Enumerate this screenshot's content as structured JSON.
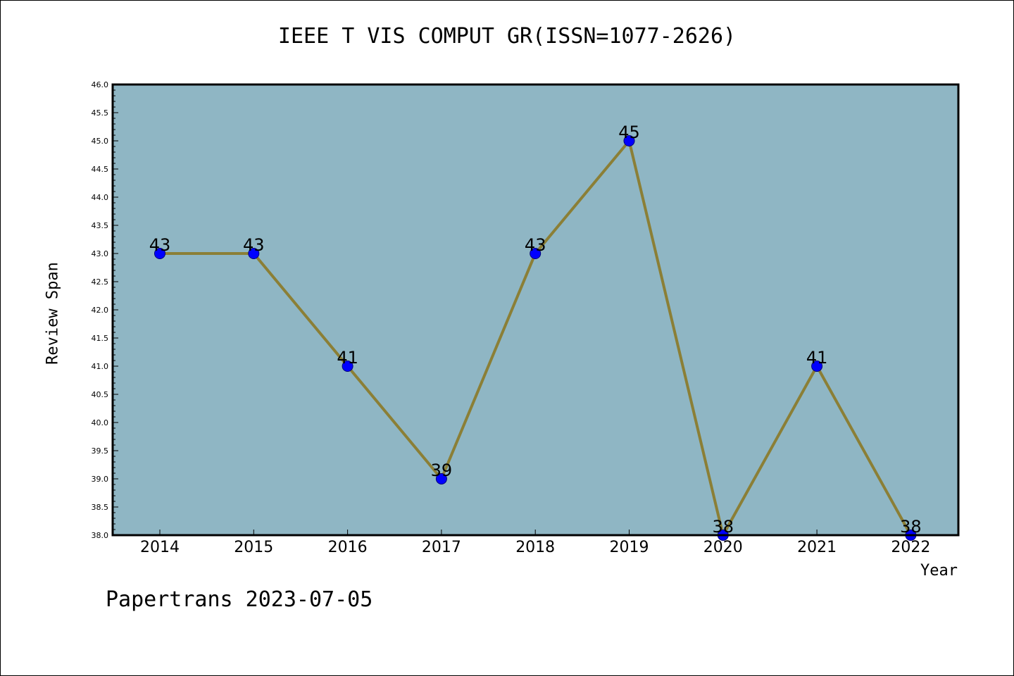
{
  "chart_data": {
    "type": "line",
    "title": "IEEE T VIS COMPUT GR(ISSN=1077-2626)",
    "xlabel": "Year",
    "ylabel": "Review Span",
    "categories": [
      "2014",
      "2015",
      "2016",
      "2017",
      "2018",
      "2019",
      "2020",
      "2021",
      "2022"
    ],
    "values": [
      43,
      43,
      41,
      39,
      43,
      45,
      38,
      41,
      38
    ],
    "ylim": [
      38.0,
      46.0
    ],
    "ytick_step": 0.5,
    "grid": false,
    "data_labels": true,
    "colors": {
      "plot_background": "#8fb6c4",
      "line": "#8b7f36",
      "marker": "#0000ff",
      "marker_edge": "#00007a"
    }
  },
  "footer": {
    "note": "Papertrans 2023-07-05"
  }
}
